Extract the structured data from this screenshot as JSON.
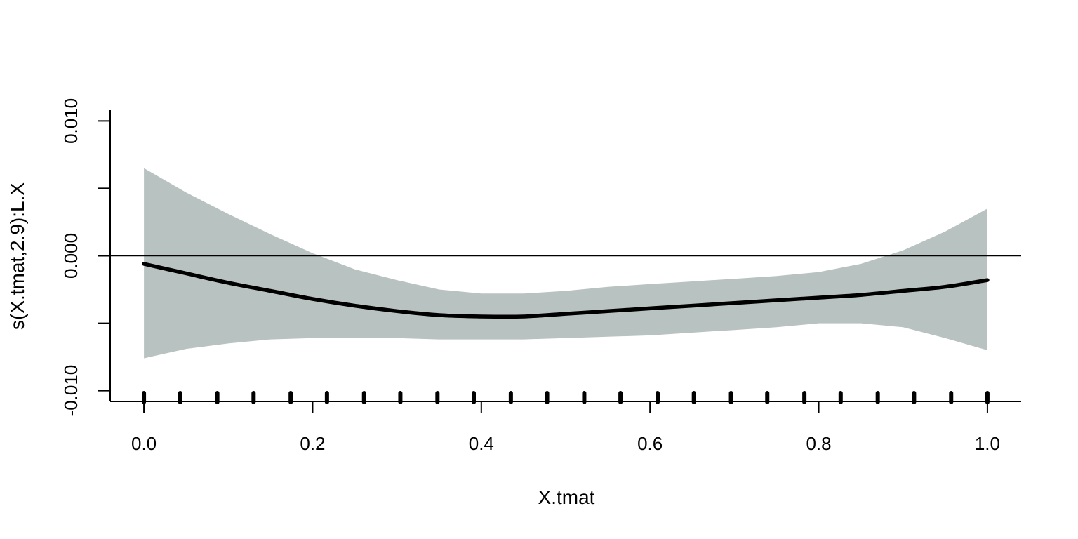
{
  "chart_data": {
    "type": "line",
    "xlabel": "X.tmat",
    "ylabel": "s(X.tmat,2.9):L.X",
    "xlim": [
      -0.04,
      1.04
    ],
    "ylim": [
      -0.0108,
      0.0108
    ],
    "x_ticks": [
      0.0,
      0.2,
      0.4,
      0.6,
      0.8,
      1.0
    ],
    "x_tick_labels": [
      "0.0",
      "0.2",
      "0.4",
      "0.6",
      "0.8",
      "1.0"
    ],
    "y_ticks": [
      -0.01,
      -0.005,
      0.0,
      0.005,
      0.01
    ],
    "y_tick_labels": [
      "-0.010",
      "",
      "0.000",
      "",
      "0.010"
    ],
    "reference_line": 0.0,
    "band_color": "#b8c2c1",
    "line_color": "#000000",
    "x": [
      0.0,
      0.05,
      0.1,
      0.15,
      0.2,
      0.25,
      0.3,
      0.35,
      0.4,
      0.45,
      0.5,
      0.55,
      0.6,
      0.65,
      0.7,
      0.75,
      0.8,
      0.85,
      0.9,
      0.95,
      1.0
    ],
    "series": [
      {
        "values": [
          -0.0006,
          -0.0013,
          -0.002,
          -0.0026,
          -0.0032,
          -0.0037,
          -0.0041,
          -0.0044,
          -0.0045,
          -0.0045,
          -0.0043,
          -0.0041,
          -0.0039,
          -0.0037,
          -0.0035,
          -0.0033,
          -0.0031,
          -0.0029,
          -0.0026,
          -0.0023,
          -0.0018
        ]
      }
    ],
    "confidence_band": {
      "upper": [
        0.0065,
        0.0047,
        0.0031,
        0.0016,
        0.0002,
        -0.001,
        -0.0018,
        -0.0025,
        -0.0028,
        -0.0028,
        -0.0026,
        -0.0023,
        -0.0021,
        -0.0019,
        -0.0017,
        -0.0015,
        -0.0012,
        -0.0006,
        0.0004,
        0.0018,
        0.0035
      ],
      "lower": [
        -0.0076,
        -0.0069,
        -0.0065,
        -0.0062,
        -0.0061,
        -0.0061,
        -0.0061,
        -0.0062,
        -0.0062,
        -0.0062,
        -0.0061,
        -0.006,
        -0.0059,
        -0.0057,
        -0.0055,
        -0.0053,
        -0.005,
        -0.005,
        -0.0053,
        -0.0061,
        -0.007
      ]
    },
    "rug": [
      0.0,
      0.043,
      0.087,
      0.13,
      0.174,
      0.217,
      0.261,
      0.304,
      0.348,
      0.391,
      0.435,
      0.478,
      0.522,
      0.565,
      0.609,
      0.652,
      0.696,
      0.739,
      0.783,
      0.826,
      0.87,
      0.913,
      0.957,
      1.0
    ],
    "grid": false
  }
}
